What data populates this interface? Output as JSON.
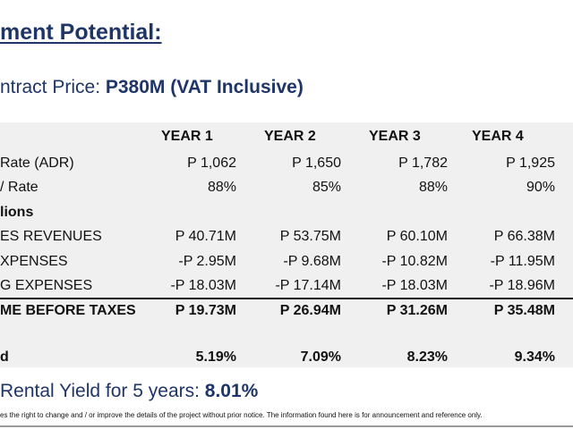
{
  "heading": "ment Potential:",
  "contract_price": {
    "label": "ntract Price: ",
    "value": "P380M (VAT Inclusive)"
  },
  "table": {
    "years": [
      "YEAR 1",
      "YEAR 2",
      "YEAR 3",
      "YEAR 4"
    ],
    "rows": [
      {
        "label": "Rate (ADR)",
        "values": [
          "P 1,062",
          "P 1,650",
          "P 1,782",
          "P 1,925"
        ]
      },
      {
        "label": "/ Rate",
        "values": [
          "88%",
          "85%",
          "88%",
          "90%"
        ]
      },
      {
        "label": "lions",
        "values": [
          "",
          "",
          "",
          ""
        ]
      },
      {
        "label": "ES REVENUES",
        "values": [
          "P 40.71M",
          "P 53.75M",
          "P 60.10M",
          "P 66.38M"
        ]
      },
      {
        "label": "XPENSES",
        "values": [
          "-P 2.95M",
          "-P 9.68M",
          "-P 10.82M",
          "-P 11.95M"
        ]
      },
      {
        "label": "G EXPENSES",
        "values": [
          "-P 18.03M",
          "-P 17.14M",
          "-P 18.03M",
          "-P 18.96M"
        ]
      }
    ],
    "total": {
      "label": "ME BEFORE TAXES",
      "values": [
        "P 19.73M",
        "P 26.94M",
        "P 31.26M",
        "P 35.48M"
      ]
    },
    "yield": {
      "label": "d",
      "values": [
        "5.19%",
        "7.09%",
        "8.23%",
        "9.34%"
      ]
    }
  },
  "rental_yield": {
    "label": "Rental Yield for 5 years: ",
    "value": "8.01%"
  },
  "disclaimer": "es the right to change and / or improve the details of the project without prior notice.  The information found here is for announcement and reference only."
}
